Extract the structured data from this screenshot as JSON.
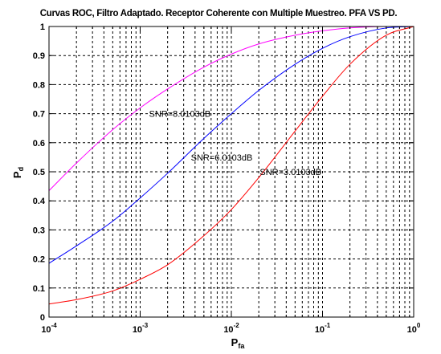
{
  "chart_data": {
    "type": "line",
    "title": "Curvas ROC, Filtro Adaptado. Receptor Coherente con Multiple Muestreo. PFA VS PD.",
    "xlabel": {
      "main": "P",
      "sub": "fa"
    },
    "ylabel": {
      "main": "P",
      "sub": "d"
    },
    "xscale": "log",
    "xlim": [
      0.0001,
      1
    ],
    "ylim": [
      0,
      1
    ],
    "grid": true,
    "x_ticks": [
      {
        "base": "10",
        "exp": "-4",
        "value": 0.0001
      },
      {
        "base": "10",
        "exp": "-3",
        "value": 0.001
      },
      {
        "base": "10",
        "exp": "-2",
        "value": 0.01
      },
      {
        "base": "10",
        "exp": "-1",
        "value": 0.1
      },
      {
        "base": "10",
        "exp": "0",
        "value": 1
      }
    ],
    "y_ticks": [
      {
        "label": "0",
        "value": 0
      },
      {
        "label": "0.1",
        "value": 0.1
      },
      {
        "label": "0.2",
        "value": 0.2
      },
      {
        "label": "0.3",
        "value": 0.3
      },
      {
        "label": "0.4",
        "value": 0.4
      },
      {
        "label": "0.5",
        "value": 0.5
      },
      {
        "label": "0.6",
        "value": 0.6
      },
      {
        "label": "0.7",
        "value": 0.7
      },
      {
        "label": "0.8",
        "value": 0.8
      },
      {
        "label": "0.9",
        "value": 0.9
      },
      {
        "label": "1",
        "value": 1
      }
    ],
    "series": [
      {
        "color": "#ff00ff",
        "x": [
          0.0001,
          0.0002,
          0.0005,
          0.001,
          0.002,
          0.005,
          0.01,
          0.02,
          0.05,
          0.1,
          0.2,
          0.5,
          1
        ],
        "y": [
          0.435,
          0.53,
          0.645,
          0.72,
          0.785,
          0.86,
          0.905,
          0.94,
          0.97,
          0.985,
          0.995,
          1.0,
          1.0
        ]
      },
      {
        "color": "#0000ff",
        "x": [
          0.0001,
          0.0002,
          0.0005,
          0.001,
          0.002,
          0.005,
          0.01,
          0.02,
          0.05,
          0.1,
          0.2,
          0.5,
          1
        ],
        "y": [
          0.185,
          0.245,
          0.33,
          0.41,
          0.495,
          0.615,
          0.7,
          0.78,
          0.87,
          0.925,
          0.965,
          0.995,
          1.0
        ]
      },
      {
        "color": "#ff0000",
        "x": [
          0.0001,
          0.0002,
          0.0005,
          0.001,
          0.002,
          0.005,
          0.01,
          0.02,
          0.05,
          0.1,
          0.2,
          0.5,
          1
        ],
        "y": [
          0.045,
          0.06,
          0.09,
          0.13,
          0.18,
          0.28,
          0.37,
          0.48,
          0.64,
          0.76,
          0.87,
          0.97,
          1.0
        ]
      }
    ],
    "annotations": [
      {
        "text": "SNR=8.0103dB",
        "x": 0.00125,
        "y": 0.7
      },
      {
        "text": "SNR=6.0103dB",
        "x": 0.0036,
        "y": 0.55
      },
      {
        "text": "SNR=3.0103dB",
        "x": 0.0205,
        "y": 0.5
      }
    ]
  }
}
